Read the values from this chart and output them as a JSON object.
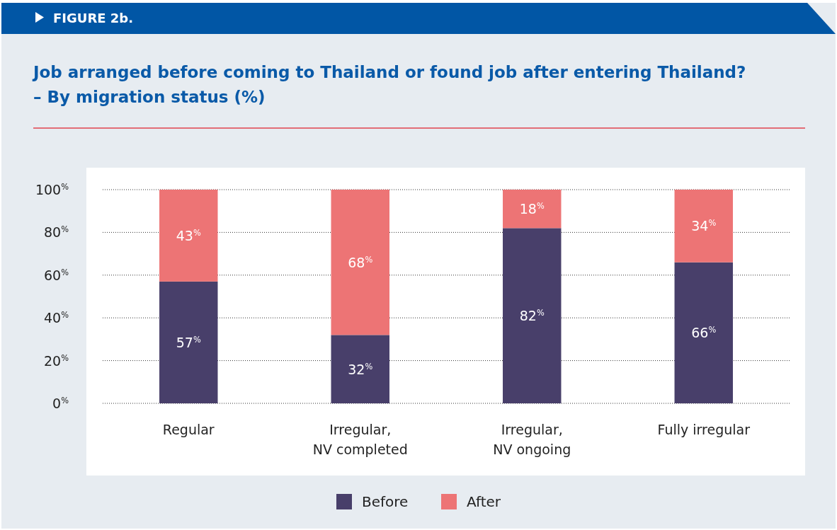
{
  "chart_data": {
    "type": "bar",
    "stacked": true,
    "title": "Job arranged before coming to Thailand or found job after entering Thailand?",
    "subtitle": "– By migration status (%)",
    "annotations": [
      "FIGURE 2b."
    ],
    "categories": [
      "Regular",
      "Irregular,\nNV completed",
      "Irregular,\nNV ongoing",
      "Fully irregular"
    ],
    "series": [
      {
        "name": "Before",
        "color": "#483f6a",
        "values": [
          57,
          32,
          82,
          66
        ],
        "value_labels": [
          "57$^{%}$",
          "32$^{%}$",
          "82$^{%}$",
          "66$^{%}$"
        ]
      },
      {
        "name": "After",
        "color": "#ed7475",
        "values": [
          43,
          68,
          18,
          34
        ],
        "value_labels": [
          "43$^{%}$",
          "68$^{%}$",
          "18$^{%}$",
          "34$^{%}$"
        ]
      }
    ],
    "ylim": [
      0,
      100
    ],
    "yticks": [
      {
        "value": 0,
        "label": "0$^{%}$"
      },
      {
        "value": 20,
        "label": "20$^{%}$"
      },
      {
        "value": 40,
        "label": "40$^{%}$"
      },
      {
        "value": 60,
        "label": "60$^{%}$"
      },
      {
        "value": 80,
        "label": "80$^{%}$"
      },
      {
        "value": 100,
        "label": "100$^{%}$"
      }
    ],
    "grid": "y",
    "legend": "bottom"
  }
}
